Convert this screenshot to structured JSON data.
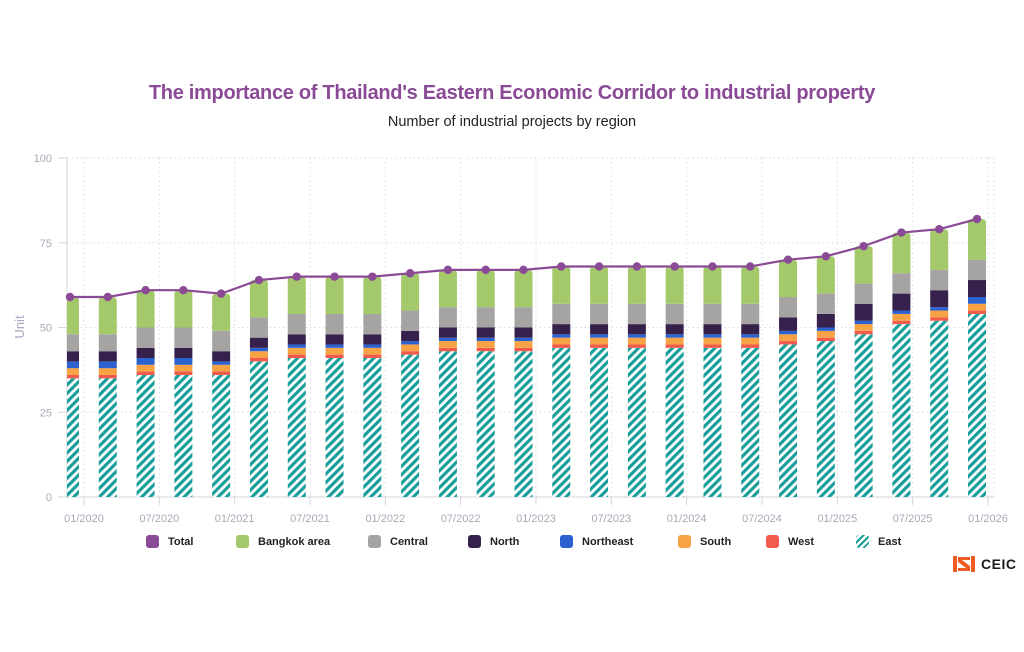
{
  "header": {
    "title": "The importance of Thailand's Eastern Economic Corridor to industrial property",
    "subtitle": "Number of industrial projects by region"
  },
  "colors": {
    "title": "#8a4a96",
    "total": "#8a4a96",
    "bangkok": "#a3c96b",
    "central": "#a5a4a3",
    "north": "#35214b",
    "northeast": "#2b62d0",
    "south": "#f7a244",
    "west": "#f25a4c",
    "east": "#1a9e9a",
    "logo": "#f05a23"
  },
  "legend": [
    {
      "key": "total",
      "label": "Total",
      "color": "#8a4a96",
      "hatched": false
    },
    {
      "key": "bangkok",
      "label": "Bangkok area",
      "color": "#a3c96b",
      "hatched": false
    },
    {
      "key": "central",
      "label": "Central",
      "color": "#a5a4a3",
      "hatched": false
    },
    {
      "key": "north",
      "label": "North",
      "color": "#35214b",
      "hatched": false
    },
    {
      "key": "northeast",
      "label": "Northeast",
      "color": "#2b62d0",
      "hatched": false
    },
    {
      "key": "south",
      "label": "South",
      "color": "#f7a244",
      "hatched": false
    },
    {
      "key": "west",
      "label": "West",
      "color": "#f25a4c",
      "hatched": false
    },
    {
      "key": "east",
      "label": "East",
      "color": "#1a9e9a",
      "hatched": true
    }
  ],
  "logo": {
    "text": "CEIC"
  },
  "chart_data": {
    "type": "bar",
    "stacked": true,
    "title": "The importance of Thailand's Eastern Economic Corridor to industrial property",
    "subtitle": "Number of industrial projects by region",
    "xlabel": "",
    "ylabel": "Unit",
    "ylim": [
      0,
      100
    ],
    "yticks": [
      0,
      25,
      50,
      75,
      100
    ],
    "xticks": [
      "01/2020",
      "07/2020",
      "01/2021",
      "07/2021",
      "01/2022",
      "07/2022",
      "01/2023",
      "07/2023",
      "01/2024",
      "07/2024",
      "01/2025",
      "07/2025",
      "01/2026"
    ],
    "grid": true,
    "legend_position": "bottom",
    "categories": [
      "12/2019",
      "03/2020",
      "06/2020",
      "09/2020",
      "12/2020",
      "03/2021",
      "06/2021",
      "09/2021",
      "12/2021",
      "03/2022",
      "06/2022",
      "09/2022",
      "12/2022",
      "03/2023",
      "06/2023",
      "09/2023",
      "12/2023",
      "03/2024",
      "06/2024",
      "09/2024",
      "12/2024",
      "03/2025",
      "06/2025",
      "09/2025",
      "12/2025"
    ],
    "series": [
      {
        "key": "east",
        "name": "East",
        "type": "bar",
        "pattern": "hatch",
        "values": [
          35,
          35,
          36,
          36,
          36,
          40,
          41,
          41,
          41,
          42,
          43,
          43,
          43,
          44,
          44,
          44,
          44,
          44,
          44,
          45,
          46,
          48,
          51,
          52,
          54
        ]
      },
      {
        "key": "west",
        "name": "West",
        "type": "bar",
        "values": [
          1,
          1,
          1,
          1,
          1,
          1,
          1,
          1,
          1,
          1,
          1,
          1,
          1,
          1,
          1,
          1,
          1,
          1,
          1,
          1,
          1,
          1,
          1,
          1,
          1
        ]
      },
      {
        "key": "south",
        "name": "South",
        "type": "bar",
        "values": [
          2,
          2,
          2,
          2,
          2,
          2,
          2,
          2,
          2,
          2,
          2,
          2,
          2,
          2,
          2,
          2,
          2,
          2,
          2,
          2,
          2,
          2,
          2,
          2,
          2
        ]
      },
      {
        "key": "northeast",
        "name": "Northeast",
        "type": "bar",
        "values": [
          2,
          2,
          2,
          2,
          1,
          1,
          1,
          1,
          1,
          1,
          1,
          1,
          1,
          1,
          1,
          1,
          1,
          1,
          1,
          1,
          1,
          1,
          1,
          1,
          2
        ]
      },
      {
        "key": "north",
        "name": "North",
        "type": "bar",
        "values": [
          3,
          3,
          3,
          3,
          3,
          3,
          3,
          3,
          3,
          3,
          3,
          3,
          3,
          3,
          3,
          3,
          3,
          3,
          3,
          4,
          4,
          5,
          5,
          5,
          5
        ]
      },
      {
        "key": "central",
        "name": "Central",
        "type": "bar",
        "values": [
          5,
          5,
          6,
          6,
          6,
          6,
          6,
          6,
          6,
          6,
          6,
          6,
          6,
          6,
          6,
          6,
          6,
          6,
          6,
          6,
          6,
          6,
          6,
          6,
          6
        ]
      },
      {
        "key": "bangkok",
        "name": "Bangkok area",
        "type": "bar",
        "values": [
          11,
          11,
          11,
          11,
          11,
          11,
          11,
          11,
          11,
          11,
          11,
          11,
          11,
          11,
          11,
          11,
          11,
          11,
          11,
          11,
          11,
          11,
          12,
          12,
          12
        ]
      },
      {
        "key": "total",
        "name": "Total",
        "type": "line",
        "values": [
          59,
          59,
          61,
          61,
          60,
          64,
          65,
          65,
          65,
          66,
          67,
          67,
          67,
          68,
          68,
          68,
          68,
          68,
          68,
          70,
          71,
          74,
          78,
          79,
          82
        ]
      }
    ]
  }
}
